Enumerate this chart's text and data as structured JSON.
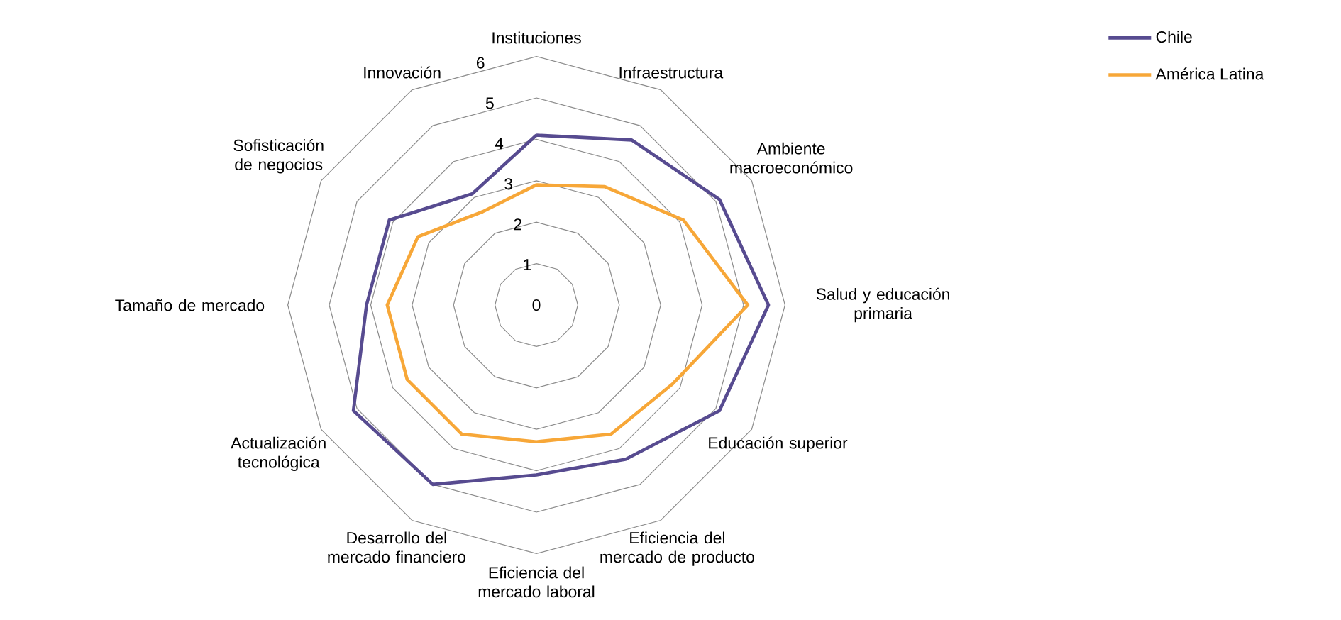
{
  "chart_data": {
    "type": "radar",
    "categories": [
      "Instituciones",
      "Infraestructura",
      "Ambiente macroeconómico",
      "Salud y educación primaria",
      "Educación superior",
      "Eficiencia del mercado de producto",
      "Eficiencia del mercado laboral",
      "Desarrollo del mercado financiero",
      "Actualización tecnológica",
      "Tamaño de mercado",
      "Sofisticación de negocios",
      "Innovación"
    ],
    "series": [
      {
        "name": "Chile",
        "color": "#574b90",
        "values": [
          4.1,
          4.6,
          5.1,
          5.6,
          5.1,
          4.3,
          4.1,
          5.0,
          5.1,
          4.1,
          4.1,
          3.1
        ]
      },
      {
        "name": "América Latina",
        "color": "#f7a738",
        "values": [
          2.9,
          3.3,
          4.1,
          5.1,
          3.8,
          3.6,
          3.3,
          3.6,
          3.6,
          3.6,
          3.3,
          2.6
        ]
      }
    ],
    "ylim": [
      0,
      6
    ],
    "yticks": [
      0,
      1,
      2,
      3,
      4,
      5,
      6
    ],
    "grid": true,
    "legend": "top right"
  }
}
